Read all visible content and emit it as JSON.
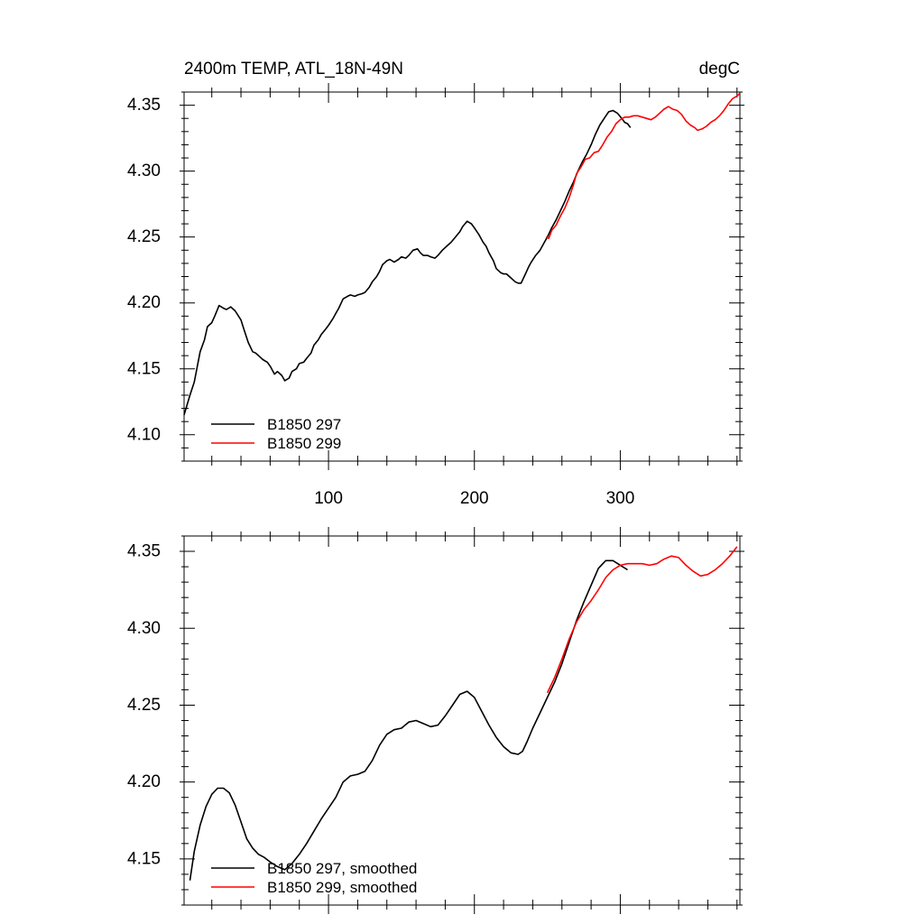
{
  "chart_data": [
    {
      "type": "line",
      "panel": "raw",
      "title": "2400m TEMP, ATL_18N-49N",
      "units": "degC",
      "xlabel": "",
      "ylabel": "",
      "xlim": [
        1,
        382
      ],
      "ylim": [
        4.08,
        4.36
      ],
      "grid": false,
      "legend_position": "bottom-left",
      "xticks": [
        100,
        200,
        300
      ],
      "xtick_labels": [
        "100",
        "200",
        "300"
      ],
      "yticks": [
        4.1,
        4.15,
        4.2,
        4.25,
        4.3,
        4.35
      ],
      "ytick_labels": [
        "4.10",
        "4.15",
        "4.20",
        "4.25",
        "4.30",
        "4.35"
      ],
      "series": [
        {
          "name": "B1850 297",
          "color": "#000000",
          "points": [
            [
              1,
              4.115
            ],
            [
              5,
              4.13
            ],
            [
              8,
              4.14
            ],
            [
              12,
              4.163
            ],
            [
              15,
              4.172
            ],
            [
              17,
              4.182
            ],
            [
              20,
              4.185
            ],
            [
              22,
              4.19
            ],
            [
              25,
              4.198
            ],
            [
              28,
              4.196
            ],
            [
              30,
              4.195
            ],
            [
              33,
              4.197
            ],
            [
              36,
              4.194
            ],
            [
              40,
              4.187
            ],
            [
              42,
              4.18
            ],
            [
              45,
              4.17
            ],
            [
              48,
              4.163
            ],
            [
              50,
              4.162
            ],
            [
              52,
              4.16
            ],
            [
              55,
              4.157
            ],
            [
              58,
              4.155
            ],
            [
              60,
              4.152
            ],
            [
              63,
              4.146
            ],
            [
              65,
              4.148
            ],
            [
              68,
              4.145
            ],
            [
              70,
              4.141
            ],
            [
              73,
              4.143
            ],
            [
              75,
              4.148
            ],
            [
              78,
              4.15
            ],
            [
              80,
              4.154
            ],
            [
              83,
              4.155
            ],
            [
              85,
              4.158
            ],
            [
              88,
              4.162
            ],
            [
              90,
              4.168
            ],
            [
              93,
              4.172
            ],
            [
              95,
              4.176
            ],
            [
              98,
              4.18
            ],
            [
              100,
              4.183
            ],
            [
              103,
              4.188
            ],
            [
              105,
              4.192
            ],
            [
              107,
              4.196
            ],
            [
              110,
              4.203
            ],
            [
              113,
              4.205
            ],
            [
              115,
              4.206
            ],
            [
              118,
              4.205
            ],
            [
              120,
              4.206
            ],
            [
              123,
              4.207
            ],
            [
              125,
              4.208
            ],
            [
              128,
              4.212
            ],
            [
              130,
              4.216
            ],
            [
              133,
              4.22
            ],
            [
              135,
              4.224
            ],
            [
              137,
              4.229
            ],
            [
              140,
              4.232
            ],
            [
              142,
              4.233
            ],
            [
              145,
              4.231
            ],
            [
              148,
              4.233
            ],
            [
              150,
              4.235
            ],
            [
              153,
              4.234
            ],
            [
              155,
              4.236
            ],
            [
              158,
              4.24
            ],
            [
              161,
              4.241
            ],
            [
              163,
              4.238
            ],
            [
              165,
              4.236
            ],
            [
              168,
              4.236
            ],
            [
              170,
              4.235
            ],
            [
              173,
              4.234
            ],
            [
              175,
              4.236
            ],
            [
              178,
              4.24
            ],
            [
              181,
              4.243
            ],
            [
              184,
              4.246
            ],
            [
              187,
              4.25
            ],
            [
              190,
              4.254
            ],
            [
              192,
              4.258
            ],
            [
              195,
              4.262
            ],
            [
              198,
              4.26
            ],
            [
              200,
              4.257
            ],
            [
              203,
              4.252
            ],
            [
              206,
              4.246
            ],
            [
              208,
              4.243
            ],
            [
              210,
              4.238
            ],
            [
              213,
              4.232
            ],
            [
              215,
              4.226
            ],
            [
              218,
              4.223
            ],
            [
              220,
              4.222
            ],
            [
              222,
              4.222
            ],
            [
              225,
              4.219
            ],
            [
              228,
              4.216
            ],
            [
              230,
              4.215
            ],
            [
              232,
              4.215
            ],
            [
              235,
              4.222
            ],
            [
              237,
              4.227
            ],
            [
              239,
              4.231
            ],
            [
              242,
              4.236
            ],
            [
              245,
              4.24
            ],
            [
              248,
              4.246
            ],
            [
              250,
              4.25
            ],
            [
              253,
              4.257
            ],
            [
              256,
              4.263
            ],
            [
              259,
              4.27
            ],
            [
              262,
              4.277
            ],
            [
              265,
              4.285
            ],
            [
              268,
              4.292
            ],
            [
              271,
              4.3
            ],
            [
              274,
              4.307
            ],
            [
              277,
              4.313
            ],
            [
              280,
              4.32
            ],
            [
              283,
              4.328
            ],
            [
              286,
              4.335
            ],
            [
              289,
              4.34
            ],
            [
              292,
              4.345
            ],
            [
              295,
              4.346
            ],
            [
              298,
              4.344
            ],
            [
              301,
              4.34
            ],
            [
              303,
              4.337
            ],
            [
              305,
              4.336
            ],
            [
              307,
              4.333
            ]
          ]
        },
        {
          "name": "B1850 299",
          "color": "#ff0000",
          "points": [
            [
              249,
              4.25
            ],
            [
              251,
              4.249
            ],
            [
              253,
              4.255
            ],
            [
              256,
              4.259
            ],
            [
              259,
              4.266
            ],
            [
              262,
              4.272
            ],
            [
              265,
              4.28
            ],
            [
              268,
              4.29
            ],
            [
              270,
              4.298
            ],
            [
              273,
              4.303
            ],
            [
              276,
              4.309
            ],
            [
              279,
              4.31
            ],
            [
              282,
              4.314
            ],
            [
              285,
              4.315
            ],
            [
              288,
              4.32
            ],
            [
              291,
              4.326
            ],
            [
              294,
              4.33
            ],
            [
              297,
              4.336
            ],
            [
              300,
              4.339
            ],
            [
              303,
              4.341
            ],
            [
              306,
              4.341
            ],
            [
              309,
              4.342
            ],
            [
              312,
              4.342
            ],
            [
              315,
              4.341
            ],
            [
              318,
              4.34
            ],
            [
              321,
              4.339
            ],
            [
              324,
              4.341
            ],
            [
              327,
              4.344
            ],
            [
              330,
              4.347
            ],
            [
              333,
              4.349
            ],
            [
              336,
              4.347
            ],
            [
              339,
              4.346
            ],
            [
              342,
              4.343
            ],
            [
              345,
              4.338
            ],
            [
              348,
              4.335
            ],
            [
              351,
              4.333
            ],
            [
              353,
              4.331
            ],
            [
              356,
              4.332
            ],
            [
              359,
              4.334
            ],
            [
              362,
              4.337
            ],
            [
              365,
              4.339
            ],
            [
              368,
              4.342
            ],
            [
              371,
              4.346
            ],
            [
              374,
              4.351
            ],
            [
              377,
              4.355
            ],
            [
              380,
              4.357
            ],
            [
              382,
              4.359
            ]
          ]
        }
      ]
    },
    {
      "type": "line",
      "panel": "smoothed",
      "title": "",
      "xlabel": "",
      "ylabel": "",
      "xlim": [
        1,
        382
      ],
      "ylim": [
        4.12,
        4.36
      ],
      "grid": false,
      "legend_position": "bottom-left",
      "xticks": [
        100,
        200,
        300
      ],
      "yticks": [
        4.15,
        4.2,
        4.25,
        4.3,
        4.35
      ],
      "ytick_labels": [
        "4.15",
        "4.20",
        "4.25",
        "4.30",
        "4.35"
      ],
      "series": [
        {
          "name": "B1850 297, smoothed",
          "color": "#000000",
          "points": [
            [
              5,
              4.136
            ],
            [
              8,
              4.155
            ],
            [
              12,
              4.172
            ],
            [
              16,
              4.184
            ],
            [
              20,
              4.192
            ],
            [
              24,
              4.196
            ],
            [
              28,
              4.196
            ],
            [
              32,
              4.193
            ],
            [
              36,
              4.185
            ],
            [
              40,
              4.174
            ],
            [
              44,
              4.163
            ],
            [
              48,
              4.157
            ],
            [
              52,
              4.153
            ],
            [
              56,
              4.151
            ],
            [
              60,
              4.148
            ],
            [
              65,
              4.145
            ],
            [
              70,
              4.143
            ],
            [
              75,
              4.147
            ],
            [
              80,
              4.153
            ],
            [
              85,
              4.16
            ],
            [
              90,
              4.168
            ],
            [
              95,
              4.176
            ],
            [
              100,
              4.183
            ],
            [
              105,
              4.19
            ],
            [
              110,
              4.2
            ],
            [
              115,
              4.204
            ],
            [
              120,
              4.205
            ],
            [
              125,
              4.207
            ],
            [
              130,
              4.214
            ],
            [
              135,
              4.224
            ],
            [
              140,
              4.231
            ],
            [
              145,
              4.234
            ],
            [
              150,
              4.235
            ],
            [
              155,
              4.239
            ],
            [
              160,
              4.24
            ],
            [
              165,
              4.238
            ],
            [
              170,
              4.236
            ],
            [
              175,
              4.237
            ],
            [
              180,
              4.243
            ],
            [
              185,
              4.25
            ],
            [
              190,
              4.257
            ],
            [
              195,
              4.259
            ],
            [
              200,
              4.255
            ],
            [
              205,
              4.246
            ],
            [
              210,
              4.237
            ],
            [
              215,
              4.229
            ],
            [
              220,
              4.223
            ],
            [
              225,
              4.219
            ],
            [
              230,
              4.218
            ],
            [
              233,
              4.22
            ],
            [
              236,
              4.226
            ],
            [
              240,
              4.235
            ],
            [
              245,
              4.245
            ],
            [
              250,
              4.255
            ],
            [
              255,
              4.265
            ],
            [
              260,
              4.277
            ],
            [
              265,
              4.291
            ],
            [
              270,
              4.305
            ],
            [
              275,
              4.317
            ],
            [
              280,
              4.328
            ],
            [
              285,
              4.339
            ],
            [
              290,
              4.344
            ],
            [
              295,
              4.344
            ],
            [
              300,
              4.341
            ],
            [
              305,
              4.338
            ]
          ]
        },
        {
          "name": "B1850 299, smoothed",
          "color": "#ff0000",
          "points": [
            [
              250,
              4.258
            ],
            [
              255,
              4.268
            ],
            [
              260,
              4.28
            ],
            [
              265,
              4.293
            ],
            [
              270,
              4.304
            ],
            [
              275,
              4.312
            ],
            [
              280,
              4.318
            ],
            [
              285,
              4.325
            ],
            [
              290,
              4.333
            ],
            [
              295,
              4.338
            ],
            [
              300,
              4.341
            ],
            [
              305,
              4.342
            ],
            [
              310,
              4.342
            ],
            [
              315,
              4.342
            ],
            [
              320,
              4.341
            ],
            [
              325,
              4.342
            ],
            [
              330,
              4.345
            ],
            [
              335,
              4.347
            ],
            [
              340,
              4.346
            ],
            [
              345,
              4.341
            ],
            [
              350,
              4.337
            ],
            [
              355,
              4.334
            ],
            [
              360,
              4.335
            ],
            [
              365,
              4.338
            ],
            [
              370,
              4.342
            ],
            [
              375,
              4.347
            ],
            [
              380,
              4.353
            ]
          ]
        }
      ]
    }
  ]
}
